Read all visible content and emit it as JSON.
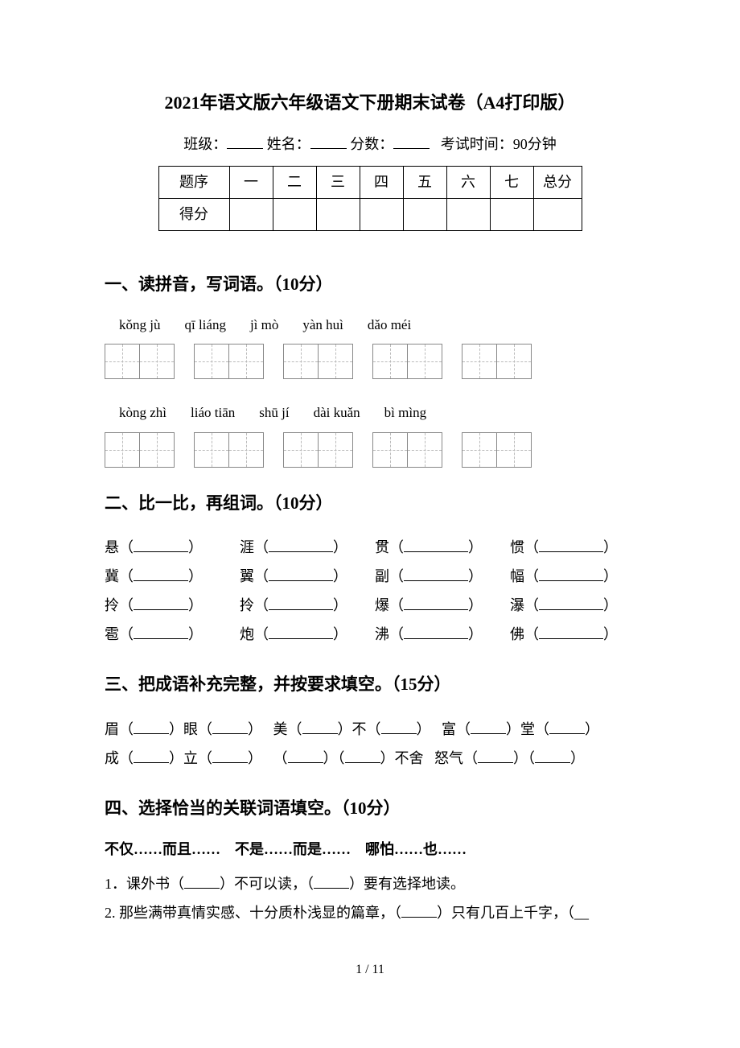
{
  "title": "2021年语文版六年级语文下册期末试卷（A4打印版）",
  "info": {
    "class_label": "班级：",
    "name_label": "姓名：",
    "score_label": "分数：",
    "time_label": "考试时间：90分钟"
  },
  "score_table": {
    "row_label": "题序",
    "score_label": "得分",
    "cols": [
      "一",
      "二",
      "三",
      "四",
      "五",
      "六",
      "七",
      "总分"
    ]
  },
  "section1": {
    "heading": "一、读拼音，写词语。（10分）",
    "row1": [
      "kǒng jù",
      "qī liáng",
      "jì mò",
      "yàn huì",
      "dǎo méi"
    ],
    "row2": [
      "kòng zhì",
      "liáo tiān",
      "shū jí",
      "dài kuǎn",
      "bì mìng"
    ]
  },
  "section2": {
    "heading": "二、比一比，再组词。（10分）",
    "rows": [
      [
        "悬",
        "涯",
        "贯",
        "惯"
      ],
      [
        "冀",
        "翼",
        "副",
        "幅"
      ],
      [
        "拎",
        "拎",
        "爆",
        "瀑"
      ],
      [
        "雹",
        "炮",
        "沸",
        "佛"
      ]
    ]
  },
  "section3": {
    "heading": "三、把成语补充完整，并按要求填空。（15分）",
    "line1": {
      "a1": "眉（",
      "a2": "）眼（",
      "a3": "）",
      "b1": "美（",
      "b2": "）不（",
      "b3": "）",
      "c1": "富（",
      "c2": "）堂（",
      "c3": "）"
    },
    "line2": {
      "a1": "成（",
      "a2": "）立（",
      "a3": "）",
      "b1": "（",
      "b2": "）（",
      "b3": "）不舍",
      "c1": "怒气（",
      "c2": "）（",
      "c3": "）"
    }
  },
  "section4": {
    "heading": "四、选择恰当的关联词语填空。（10分）",
    "options": "不仅……而且……　不是……而是……　哪怕……也……",
    "q1a": "1．课外书（",
    "q1b": "）不可以读，（",
    "q1c": "）要有选择地读。",
    "q2a": "2. 那些满带真情实感、十分质朴浅显的篇章，（",
    "q2b": "）只有几百上千字，（__"
  },
  "page_number": "1 / 11"
}
